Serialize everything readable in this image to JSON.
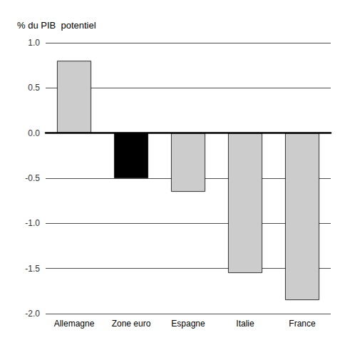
{
  "chart_data": {
    "type": "bar",
    "ylabel": "% du PIB  potentiel",
    "categories": [
      "Allemagne",
      "Zone euro",
      "Espagne",
      "Italie",
      "France"
    ],
    "values": [
      0.8,
      -0.5,
      -0.65,
      -1.55,
      -1.85
    ],
    "colors": [
      "#cccccc",
      "#000000",
      "#cccccc",
      "#cccccc",
      "#cccccc"
    ],
    "ylim": [
      -2.0,
      1.0
    ],
    "yticks": [
      {
        "value": -2.0,
        "label": "-2.0"
      },
      -1.5,
      {
        "value": -1.0,
        "label": "-1.0"
      },
      -0.5,
      {
        "value": 0.0,
        "label": "0.0"
      },
      0.5,
      {
        "value": 1.0,
        "label": "1.0"
      }
    ],
    "grid": true
  }
}
